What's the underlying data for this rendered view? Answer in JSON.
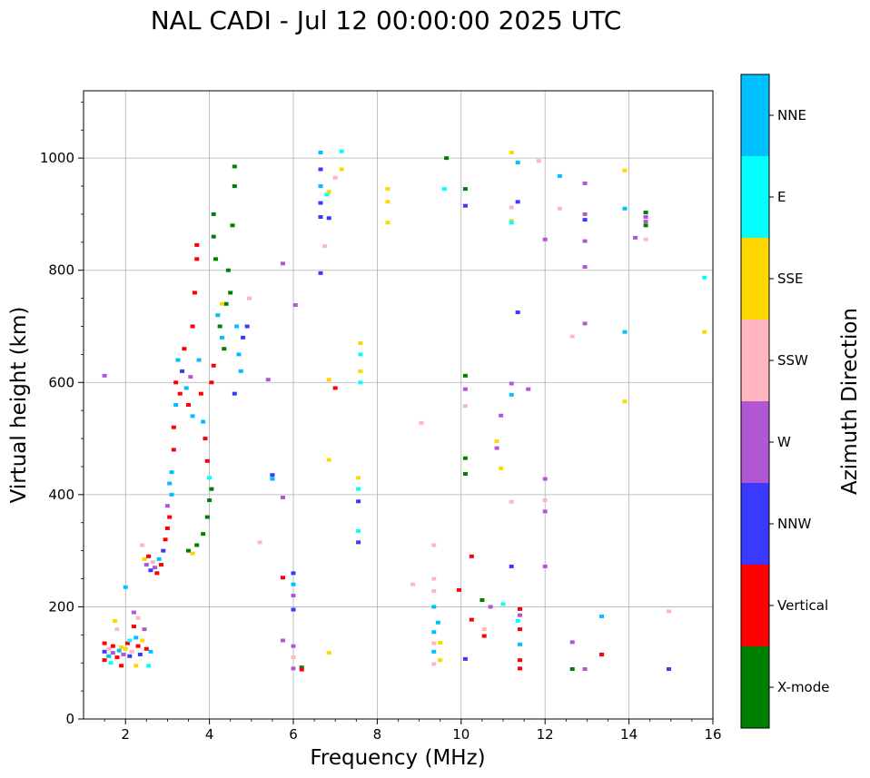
{
  "chart_data": {
    "type": "scatter",
    "title": "NAL CADI - Jul 12 00:00:00 2025 UTC",
    "xlabel": "Frequency (MHz)",
    "ylabel": "Virtual height (km)",
    "xlim": [
      1,
      16
    ],
    "ylim": [
      0,
      1120
    ],
    "xticks": [
      2,
      4,
      6,
      8,
      10,
      12,
      14,
      16
    ],
    "yticks": [
      0,
      200,
      400,
      600,
      800,
      1000
    ],
    "grid": true,
    "colorbar": {
      "label": "Azimuth Direction",
      "categories": [
        "X-mode",
        "Vertical",
        "NNW",
        "W",
        "SSW",
        "SSE",
        "E",
        "NNE"
      ],
      "colors": [
        "#008000",
        "#ff0000",
        "#3a3aff",
        "#b157d3",
        "#ffb6c1",
        "#ffd700",
        "#00ffff",
        "#00bfff"
      ]
    },
    "points": [
      {
        "f": 1.5,
        "h": 135,
        "c": "Vertical"
      },
      {
        "f": 1.5,
        "h": 120,
        "c": "NNW"
      },
      {
        "f": 1.5,
        "h": 105,
        "c": "Vertical"
      },
      {
        "f": 1.6,
        "h": 125,
        "c": "SSW"
      },
      {
        "f": 1.6,
        "h": 112,
        "c": "NNE"
      },
      {
        "f": 1.65,
        "h": 100,
        "c": "E"
      },
      {
        "f": 1.7,
        "h": 130,
        "c": "Vertical"
      },
      {
        "f": 1.7,
        "h": 118,
        "c": "W"
      },
      {
        "f": 1.75,
        "h": 175,
        "c": "SSE"
      },
      {
        "f": 1.8,
        "h": 110,
        "c": "Vertical"
      },
      {
        "f": 1.8,
        "h": 160,
        "c": "SSW"
      },
      {
        "f": 1.85,
        "h": 122,
        "c": "NNE"
      },
      {
        "f": 1.9,
        "h": 128,
        "c": "SSE"
      },
      {
        "f": 1.9,
        "h": 95,
        "c": "Vertical"
      },
      {
        "f": 1.95,
        "h": 115,
        "c": "W"
      },
      {
        "f": 2.0,
        "h": 235,
        "c": "NNE"
      },
      {
        "f": 2.0,
        "h": 125,
        "c": "SSE"
      },
      {
        "f": 2.05,
        "h": 135,
        "c": "Vertical"
      },
      {
        "f": 2.1,
        "h": 112,
        "c": "NNW"
      },
      {
        "f": 2.1,
        "h": 140,
        "c": "E"
      },
      {
        "f": 2.15,
        "h": 120,
        "c": "SSW"
      },
      {
        "f": 2.2,
        "h": 165,
        "c": "Vertical"
      },
      {
        "f": 2.2,
        "h": 190,
        "c": "W"
      },
      {
        "f": 2.25,
        "h": 145,
        "c": "NNE"
      },
      {
        "f": 2.25,
        "h": 95,
        "c": "SSE"
      },
      {
        "f": 2.3,
        "h": 130,
        "c": "Vertical"
      },
      {
        "f": 2.3,
        "h": 180,
        "c": "SSW"
      },
      {
        "f": 2.35,
        "h": 115,
        "c": "NNW"
      },
      {
        "f": 2.4,
        "h": 140,
        "c": "SSE"
      },
      {
        "f": 2.45,
        "h": 160,
        "c": "W"
      },
      {
        "f": 2.5,
        "h": 125,
        "c": "Vertical"
      },
      {
        "f": 2.55,
        "h": 95,
        "c": "E"
      },
      {
        "f": 2.6,
        "h": 120,
        "c": "NNE"
      },
      {
        "f": 2.4,
        "h": 310,
        "c": "SSW"
      },
      {
        "f": 2.45,
        "h": 285,
        "c": "SSE"
      },
      {
        "f": 2.5,
        "h": 275,
        "c": "W"
      },
      {
        "f": 2.55,
        "h": 290,
        "c": "Vertical"
      },
      {
        "f": 2.6,
        "h": 265,
        "c": "NNW"
      },
      {
        "f": 2.65,
        "h": 280,
        "c": "SSW"
      },
      {
        "f": 2.7,
        "h": 270,
        "c": "W"
      },
      {
        "f": 2.75,
        "h": 260,
        "c": "Vertical"
      },
      {
        "f": 2.8,
        "h": 285,
        "c": "NNE"
      },
      {
        "f": 2.85,
        "h": 275,
        "c": "Vertical"
      },
      {
        "f": 2.9,
        "h": 300,
        "c": "NNW"
      },
      {
        "f": 2.95,
        "h": 320,
        "c": "Vertical"
      },
      {
        "f": 3.0,
        "h": 340,
        "c": "Vertical"
      },
      {
        "f": 3.0,
        "h": 380,
        "c": "W"
      },
      {
        "f": 3.05,
        "h": 420,
        "c": "NNE"
      },
      {
        "f": 3.05,
        "h": 360,
        "c": "Vertical"
      },
      {
        "f": 3.1,
        "h": 400,
        "c": "NNE"
      },
      {
        "f": 3.1,
        "h": 440,
        "c": "NNE"
      },
      {
        "f": 3.15,
        "h": 480,
        "c": "Vertical"
      },
      {
        "f": 3.15,
        "h": 520,
        "c": "Vertical"
      },
      {
        "f": 3.2,
        "h": 560,
        "c": "NNE"
      },
      {
        "f": 3.2,
        "h": 600,
        "c": "Vertical"
      },
      {
        "f": 3.25,
        "h": 640,
        "c": "NNE"
      },
      {
        "f": 3.3,
        "h": 580,
        "c": "Vertical"
      },
      {
        "f": 3.35,
        "h": 620,
        "c": "NNW"
      },
      {
        "f": 3.4,
        "h": 660,
        "c": "Vertical"
      },
      {
        "f": 3.45,
        "h": 590,
        "c": "NNE"
      },
      {
        "f": 3.5,
        "h": 560,
        "c": "Vertical"
      },
      {
        "f": 3.55,
        "h": 610,
        "c": "W"
      },
      {
        "f": 3.6,
        "h": 540,
        "c": "NNE"
      },
      {
        "f": 3.6,
        "h": 700,
        "c": "Vertical"
      },
      {
        "f": 3.65,
        "h": 760,
        "c": "Vertical"
      },
      {
        "f": 3.7,
        "h": 820,
        "c": "Vertical"
      },
      {
        "f": 3.7,
        "h": 845,
        "c": "Vertical"
      },
      {
        "f": 3.75,
        "h": 640,
        "c": "NNE"
      },
      {
        "f": 3.8,
        "h": 580,
        "c": "Vertical"
      },
      {
        "f": 3.85,
        "h": 530,
        "c": "NNE"
      },
      {
        "f": 3.9,
        "h": 500,
        "c": "Vertical"
      },
      {
        "f": 3.95,
        "h": 460,
        "c": "Vertical"
      },
      {
        "f": 4.0,
        "h": 430,
        "c": "E"
      },
      {
        "f": 4.05,
        "h": 600,
        "c": "Vertical"
      },
      {
        "f": 4.1,
        "h": 630,
        "c": "Vertical"
      },
      {
        "f": 3.5,
        "h": 300,
        "c": "X-mode"
      },
      {
        "f": 3.6,
        "h": 295,
        "c": "SSE"
      },
      {
        "f": 3.7,
        "h": 310,
        "c": "X-mode"
      },
      {
        "f": 3.85,
        "h": 330,
        "c": "X-mode"
      },
      {
        "f": 3.95,
        "h": 360,
        "c": "X-mode"
      },
      {
        "f": 4.0,
        "h": 390,
        "c": "X-mode"
      },
      {
        "f": 4.05,
        "h": 410,
        "c": "X-mode"
      },
      {
        "f": 4.1,
        "h": 900,
        "c": "X-mode"
      },
      {
        "f": 4.1,
        "h": 860,
        "c": "X-mode"
      },
      {
        "f": 4.15,
        "h": 820,
        "c": "X-mode"
      },
      {
        "f": 4.2,
        "h": 720,
        "c": "NNE"
      },
      {
        "f": 4.25,
        "h": 700,
        "c": "X-mode"
      },
      {
        "f": 4.3,
        "h": 680,
        "c": "NNE"
      },
      {
        "f": 4.35,
        "h": 660,
        "c": "X-mode"
      },
      {
        "f": 4.4,
        "h": 740,
        "c": "X-mode"
      },
      {
        "f": 4.45,
        "h": 800,
        "c": "X-mode"
      },
      {
        "f": 4.5,
        "h": 760,
        "c": "X-mode"
      },
      {
        "f": 4.55,
        "h": 880,
        "c": "X-mode"
      },
      {
        "f": 4.6,
        "h": 985,
        "c": "X-mode"
      },
      {
        "f": 4.6,
        "h": 950,
        "c": "X-mode"
      },
      {
        "f": 4.65,
        "h": 700,
        "c": "NNE"
      },
      {
        "f": 4.7,
        "h": 650,
        "c": "NNE"
      },
      {
        "f": 4.75,
        "h": 620,
        "c": "NNE"
      },
      {
        "f": 4.8,
        "h": 680,
        "c": "NNW"
      },
      {
        "f": 4.6,
        "h": 580,
        "c": "NNW"
      },
      {
        "f": 4.3,
        "h": 740,
        "c": "SSE"
      },
      {
        "f": 4.9,
        "h": 700,
        "c": "NNW"
      },
      {
        "f": 1.5,
        "h": 612,
        "c": "W"
      },
      {
        "f": 4.95,
        "h": 750,
        "c": "SSW"
      },
      {
        "f": 5.2,
        "h": 315,
        "c": "SSW"
      },
      {
        "f": 5.4,
        "h": 605,
        "c": "W"
      },
      {
        "f": 5.5,
        "h": 435,
        "c": "NNW"
      },
      {
        "f": 5.5,
        "h": 428,
        "c": "NNE"
      },
      {
        "f": 5.75,
        "h": 812,
        "c": "W"
      },
      {
        "f": 5.75,
        "h": 395,
        "c": "W"
      },
      {
        "f": 5.75,
        "h": 252,
        "c": "Vertical"
      },
      {
        "f": 5.75,
        "h": 140,
        "c": "W"
      },
      {
        "f": 6.05,
        "h": 738,
        "c": "W"
      },
      {
        "f": 6.0,
        "h": 260,
        "c": "NNW"
      },
      {
        "f": 6.0,
        "h": 240,
        "c": "NNE"
      },
      {
        "f": 6.0,
        "h": 220,
        "c": "W"
      },
      {
        "f": 6.0,
        "h": 195,
        "c": "NNW"
      },
      {
        "f": 6.0,
        "h": 130,
        "c": "W"
      },
      {
        "f": 6.0,
        "h": 110,
        "c": "SSW"
      },
      {
        "f": 6.0,
        "h": 90,
        "c": "W"
      },
      {
        "f": 6.2,
        "h": 92,
        "c": "X-mode"
      },
      {
        "f": 6.2,
        "h": 88,
        "c": "Vertical"
      },
      {
        "f": 6.65,
        "h": 1010,
        "c": "NNE"
      },
      {
        "f": 6.65,
        "h": 980,
        "c": "NNW"
      },
      {
        "f": 6.65,
        "h": 950,
        "c": "NNE"
      },
      {
        "f": 6.65,
        "h": 920,
        "c": "NNW"
      },
      {
        "f": 6.65,
        "h": 895,
        "c": "NNW"
      },
      {
        "f": 6.65,
        "h": 795,
        "c": "NNW"
      },
      {
        "f": 6.8,
        "h": 935,
        "c": "E"
      },
      {
        "f": 6.85,
        "h": 940,
        "c": "SSE"
      },
      {
        "f": 6.85,
        "h": 893,
        "c": "NNW"
      },
      {
        "f": 6.75,
        "h": 843,
        "c": "SSW"
      },
      {
        "f": 6.85,
        "h": 605,
        "c": "SSE"
      },
      {
        "f": 6.85,
        "h": 462,
        "c": "SSE"
      },
      {
        "f": 6.85,
        "h": 118,
        "c": "SSE"
      },
      {
        "f": 7.0,
        "h": 965,
        "c": "SSW"
      },
      {
        "f": 7.0,
        "h": 590,
        "c": "Vertical"
      },
      {
        "f": 7.15,
        "h": 1012,
        "c": "E"
      },
      {
        "f": 7.15,
        "h": 980,
        "c": "SSE"
      },
      {
        "f": 7.6,
        "h": 670,
        "c": "SSE"
      },
      {
        "f": 7.6,
        "h": 650,
        "c": "E"
      },
      {
        "f": 7.6,
        "h": 620,
        "c": "SSE"
      },
      {
        "f": 7.6,
        "h": 600,
        "c": "E"
      },
      {
        "f": 7.55,
        "h": 430,
        "c": "SSE"
      },
      {
        "f": 7.55,
        "h": 410,
        "c": "E"
      },
      {
        "f": 7.55,
        "h": 388,
        "c": "NNW"
      },
      {
        "f": 7.55,
        "h": 335,
        "c": "E"
      },
      {
        "f": 7.55,
        "h": 315,
        "c": "NNW"
      },
      {
        "f": 8.25,
        "h": 945,
        "c": "SSE"
      },
      {
        "f": 8.25,
        "h": 922,
        "c": "SSE"
      },
      {
        "f": 8.25,
        "h": 885,
        "c": "SSE"
      },
      {
        "f": 9.05,
        "h": 528,
        "c": "SSW"
      },
      {
        "f": 8.85,
        "h": 240,
        "c": "SSW"
      },
      {
        "f": 9.35,
        "h": 310,
        "c": "SSW"
      },
      {
        "f": 9.35,
        "h": 250,
        "c": "SSW"
      },
      {
        "f": 9.35,
        "h": 228,
        "c": "SSW"
      },
      {
        "f": 9.35,
        "h": 200,
        "c": "NNE"
      },
      {
        "f": 9.35,
        "h": 155,
        "c": "NNE"
      },
      {
        "f": 9.35,
        "h": 135,
        "c": "SSW"
      },
      {
        "f": 9.35,
        "h": 120,
        "c": "NNE"
      },
      {
        "f": 9.35,
        "h": 98,
        "c": "SSW"
      },
      {
        "f": 9.45,
        "h": 172,
        "c": "NNE"
      },
      {
        "f": 9.5,
        "h": 136,
        "c": "SSE"
      },
      {
        "f": 9.5,
        "h": 105,
        "c": "SSE"
      },
      {
        "f": 9.65,
        "h": 1000,
        "c": "X-mode"
      },
      {
        "f": 9.6,
        "h": 945,
        "c": "E"
      },
      {
        "f": 9.95,
        "h": 230,
        "c": "Vertical"
      },
      {
        "f": 10.1,
        "h": 945,
        "c": "X-mode"
      },
      {
        "f": 10.1,
        "h": 915,
        "c": "NNW"
      },
      {
        "f": 10.1,
        "h": 612,
        "c": "X-mode"
      },
      {
        "f": 10.1,
        "h": 588,
        "c": "W"
      },
      {
        "f": 10.1,
        "h": 558,
        "c": "SSW"
      },
      {
        "f": 10.1,
        "h": 465,
        "c": "X-mode"
      },
      {
        "f": 10.1,
        "h": 437,
        "c": "X-mode"
      },
      {
        "f": 10.1,
        "h": 107,
        "c": "NNW"
      },
      {
        "f": 10.25,
        "h": 290,
        "c": "Vertical"
      },
      {
        "f": 10.25,
        "h": 177,
        "c": "Vertical"
      },
      {
        "f": 10.5,
        "h": 212,
        "c": "X-mode"
      },
      {
        "f": 10.55,
        "h": 160,
        "c": "SSW"
      },
      {
        "f": 10.55,
        "h": 148,
        "c": "Vertical"
      },
      {
        "f": 10.7,
        "h": 200,
        "c": "W"
      },
      {
        "f": 10.85,
        "h": 495,
        "c": "SSE"
      },
      {
        "f": 10.85,
        "h": 483,
        "c": "W"
      },
      {
        "f": 10.95,
        "h": 541,
        "c": "W"
      },
      {
        "f": 10.95,
        "h": 447,
        "c": "SSE"
      },
      {
        "f": 11.0,
        "h": 205,
        "c": "E"
      },
      {
        "f": 11.2,
        "h": 1010,
        "c": "SSE"
      },
      {
        "f": 11.2,
        "h": 912,
        "c": "SSW"
      },
      {
        "f": 11.2,
        "h": 888,
        "c": "SSE"
      },
      {
        "f": 11.2,
        "h": 885,
        "c": "E"
      },
      {
        "f": 11.2,
        "h": 598,
        "c": "W"
      },
      {
        "f": 11.2,
        "h": 578,
        "c": "NNE"
      },
      {
        "f": 11.2,
        "h": 387,
        "c": "SSW"
      },
      {
        "f": 11.2,
        "h": 272,
        "c": "NNW"
      },
      {
        "f": 11.35,
        "h": 992,
        "c": "NNE"
      },
      {
        "f": 11.35,
        "h": 922,
        "c": "NNW"
      },
      {
        "f": 11.35,
        "h": 725,
        "c": "NNW"
      },
      {
        "f": 11.4,
        "h": 196,
        "c": "Vertical"
      },
      {
        "f": 11.4,
        "h": 185,
        "c": "W"
      },
      {
        "f": 11.35,
        "h": 175,
        "c": "E"
      },
      {
        "f": 11.4,
        "h": 160,
        "c": "Vertical"
      },
      {
        "f": 11.4,
        "h": 133,
        "c": "NNE"
      },
      {
        "f": 11.4,
        "h": 105,
        "c": "Vertical"
      },
      {
        "f": 11.4,
        "h": 90,
        "c": "Vertical"
      },
      {
        "f": 11.6,
        "h": 588,
        "c": "W"
      },
      {
        "f": 11.85,
        "h": 995,
        "c": "SSW"
      },
      {
        "f": 12.0,
        "h": 855,
        "c": "W"
      },
      {
        "f": 12.0,
        "h": 428,
        "c": "W"
      },
      {
        "f": 12.0,
        "h": 390,
        "c": "SSW"
      },
      {
        "f": 12.0,
        "h": 370,
        "c": "W"
      },
      {
        "f": 12.0,
        "h": 272,
        "c": "W"
      },
      {
        "f": 12.35,
        "h": 968,
        "c": "NNE"
      },
      {
        "f": 12.35,
        "h": 910,
        "c": "SSW"
      },
      {
        "f": 12.65,
        "h": 682,
        "c": "SSW"
      },
      {
        "f": 12.65,
        "h": 137,
        "c": "W"
      },
      {
        "f": 12.65,
        "h": 89,
        "c": "X-mode"
      },
      {
        "f": 12.95,
        "h": 955,
        "c": "W"
      },
      {
        "f": 12.95,
        "h": 900,
        "c": "W"
      },
      {
        "f": 12.95,
        "h": 890,
        "c": "NNW"
      },
      {
        "f": 12.95,
        "h": 852,
        "c": "W"
      },
      {
        "f": 12.95,
        "h": 806,
        "c": "W"
      },
      {
        "f": 12.95,
        "h": 705,
        "c": "W"
      },
      {
        "f": 12.95,
        "h": 89,
        "c": "W"
      },
      {
        "f": 13.35,
        "h": 183,
        "c": "NNE"
      },
      {
        "f": 13.35,
        "h": 115,
        "c": "X-mode"
      },
      {
        "f": 13.35,
        "h": 115,
        "c": "Vertical"
      },
      {
        "f": 13.9,
        "h": 978,
        "c": "SSE"
      },
      {
        "f": 13.9,
        "h": 910,
        "c": "NNE"
      },
      {
        "f": 13.9,
        "h": 690,
        "c": "NNE"
      },
      {
        "f": 13.9,
        "h": 566,
        "c": "SSE"
      },
      {
        "f": 14.15,
        "h": 858,
        "c": "W"
      },
      {
        "f": 14.4,
        "h": 903,
        "c": "X-mode"
      },
      {
        "f": 14.4,
        "h": 895,
        "c": "W"
      },
      {
        "f": 14.4,
        "h": 887,
        "c": "W"
      },
      {
        "f": 14.4,
        "h": 880,
        "c": "X-mode"
      },
      {
        "f": 14.4,
        "h": 855,
        "c": "SSW"
      },
      {
        "f": 14.95,
        "h": 192,
        "c": "SSW"
      },
      {
        "f": 14.95,
        "h": 89,
        "c": "NNW"
      },
      {
        "f": 15.8,
        "h": 787,
        "c": "E"
      },
      {
        "f": 15.8,
        "h": 690,
        "c": "SSE"
      }
    ]
  }
}
